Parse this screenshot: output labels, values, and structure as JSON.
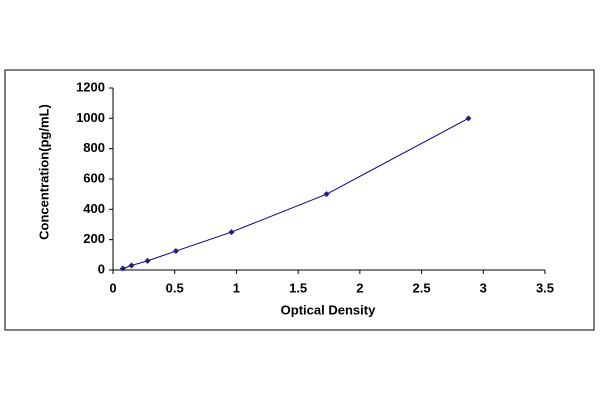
{
  "chart_data": {
    "type": "scatter",
    "x_label": "Optical Density",
    "y_label": "Concentration(pg/mL)",
    "x": [
      0.08,
      0.15,
      0.28,
      0.51,
      0.96,
      1.73,
      2.88
    ],
    "values": [
      10,
      30,
      60,
      125,
      250,
      500,
      1000
    ],
    "color": "#00007f",
    "marker_color": "#1f1f7a",
    "xlim": [
      0,
      3.5
    ],
    "xticks": [
      0,
      0.5,
      1,
      1.5,
      2,
      2.5,
      3,
      3.5
    ],
    "ylim": [
      0,
      1200
    ],
    "yticks": [
      0,
      200,
      400,
      600,
      800,
      1000,
      1200
    ],
    "grid": false
  }
}
